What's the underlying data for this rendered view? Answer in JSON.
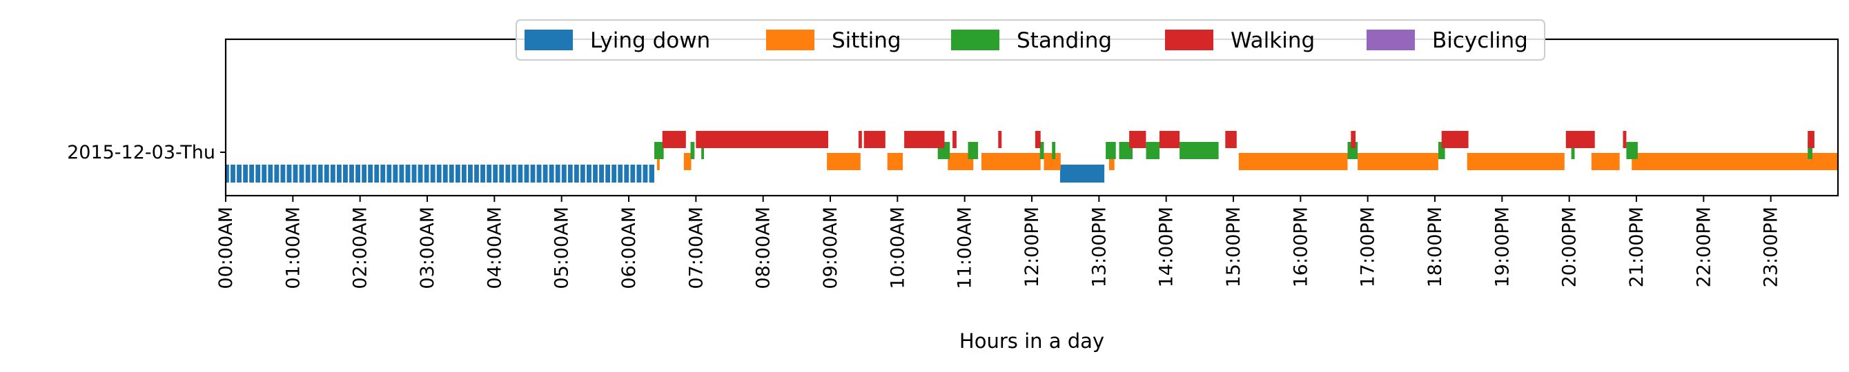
{
  "chart_data": {
    "type": "timeline",
    "title": "",
    "xlabel": "Hours in a day",
    "ylabel": "",
    "day_label": "2015-12-03-Thu",
    "xlim": [
      0,
      24
    ],
    "x_ticks": [
      {
        "hour": 0,
        "label": "00:00AM"
      },
      {
        "hour": 1,
        "label": "01:00AM"
      },
      {
        "hour": 2,
        "label": "02:00AM"
      },
      {
        "hour": 3,
        "label": "03:00AM"
      },
      {
        "hour": 4,
        "label": "04:00AM"
      },
      {
        "hour": 5,
        "label": "05:00AM"
      },
      {
        "hour": 6,
        "label": "06:00AM"
      },
      {
        "hour": 7,
        "label": "07:00AM"
      },
      {
        "hour": 8,
        "label": "08:00AM"
      },
      {
        "hour": 9,
        "label": "09:00AM"
      },
      {
        "hour": 10,
        "label": "10:00AM"
      },
      {
        "hour": 11,
        "label": "11:00AM"
      },
      {
        "hour": 12,
        "label": "12:00PM"
      },
      {
        "hour": 13,
        "label": "13:00PM"
      },
      {
        "hour": 14,
        "label": "14:00PM"
      },
      {
        "hour": 15,
        "label": "15:00PM"
      },
      {
        "hour": 16,
        "label": "16:00PM"
      },
      {
        "hour": 17,
        "label": "17:00PM"
      },
      {
        "hour": 18,
        "label": "18:00PM"
      },
      {
        "hour": 19,
        "label": "19:00PM"
      },
      {
        "hour": 20,
        "label": "20:00PM"
      },
      {
        "hour": 21,
        "label": "21:00PM"
      },
      {
        "hour": 22,
        "label": "22:00PM"
      },
      {
        "hour": 23,
        "label": "23:00PM"
      }
    ],
    "legend_placement": "top-center",
    "grid": false,
    "series": [
      {
        "name": "Lying down",
        "color": "#1f77b4",
        "intervals": [
          [
            0.0,
            6.38
          ],
          [
            12.42,
            13.08
          ]
        ]
      },
      {
        "name": "Sitting",
        "color": "#ff7f0e",
        "intervals": [
          [
            6.42,
            6.46
          ],
          [
            6.82,
            6.93
          ],
          [
            8.95,
            9.45
          ],
          [
            9.85,
            10.08
          ],
          [
            10.75,
            11.13
          ],
          [
            11.25,
            12.13
          ],
          [
            12.18,
            12.43
          ],
          [
            13.15,
            13.23
          ],
          [
            15.08,
            16.7
          ],
          [
            16.85,
            18.05
          ],
          [
            18.48,
            19.93
          ],
          [
            20.33,
            20.75
          ],
          [
            20.93,
            24.0
          ]
        ]
      },
      {
        "name": "Standing",
        "color": "#2ca02c",
        "intervals": [
          [
            6.38,
            6.52
          ],
          [
            6.92,
            6.98
          ],
          [
            7.08,
            7.12
          ],
          [
            10.6,
            10.78
          ],
          [
            11.05,
            11.2
          ],
          [
            12.12,
            12.18
          ],
          [
            12.3,
            12.35
          ],
          [
            13.1,
            13.25
          ],
          [
            13.3,
            13.5
          ],
          [
            13.7,
            13.9
          ],
          [
            14.2,
            14.78
          ],
          [
            16.7,
            16.85
          ],
          [
            18.05,
            18.15
          ],
          [
            20.03,
            20.08
          ],
          [
            20.85,
            21.02
          ],
          [
            23.55,
            23.62
          ]
        ]
      },
      {
        "name": "Walking",
        "color": "#d62728",
        "intervals": [
          [
            6.5,
            6.85
          ],
          [
            7.0,
            8.97
          ],
          [
            9.42,
            9.47
          ],
          [
            9.5,
            9.82
          ],
          [
            10.1,
            10.7
          ],
          [
            10.82,
            10.88
          ],
          [
            11.5,
            11.55
          ],
          [
            12.05,
            12.13
          ],
          [
            13.45,
            13.7
          ],
          [
            13.9,
            14.2
          ],
          [
            14.88,
            15.05
          ],
          [
            16.75,
            16.82
          ],
          [
            18.1,
            18.5
          ],
          [
            19.95,
            20.38
          ],
          [
            20.8,
            20.85
          ],
          [
            23.55,
            23.65
          ]
        ]
      },
      {
        "name": "Bicycling",
        "color": "#9467bd",
        "intervals": []
      }
    ]
  }
}
